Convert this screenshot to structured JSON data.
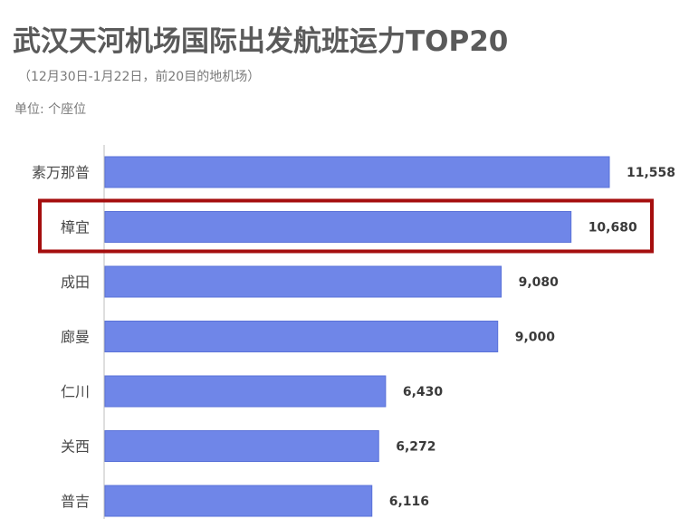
{
  "title": "武汉天河机场国际出发航班运力TOP20",
  "subtitle": "（12月30日-1月22日，前20目的地机场）",
  "unit_label": "单位: 个座位",
  "colors": {
    "bar": "#6f86e8",
    "bar_stroke": "#5a72d8",
    "highlight_box": "#a50e0e",
    "axis": "#bdbdbd"
  },
  "chart_data": {
    "type": "bar",
    "orientation": "horizontal",
    "title": "武汉天河机场国际出发航班运力TOP20",
    "subtitle": "（12月30日-1月22日，前20目的地机场）",
    "unit": "单位: 个座位",
    "categories": [
      "素万那普",
      "樟宜",
      "成田",
      "廊曼",
      "仁川",
      "关西",
      "普吉"
    ],
    "values": [
      11558,
      10680,
      9080,
      9000,
      6430,
      6272,
      6116
    ],
    "value_labels": [
      "11,558",
      "10,680",
      "9,080",
      "9,000",
      "6,430",
      "6,272",
      "6,116"
    ],
    "highlighted_category": "樟宜",
    "xlim": [
      0,
      11558
    ],
    "grid": false,
    "legend": "none"
  }
}
